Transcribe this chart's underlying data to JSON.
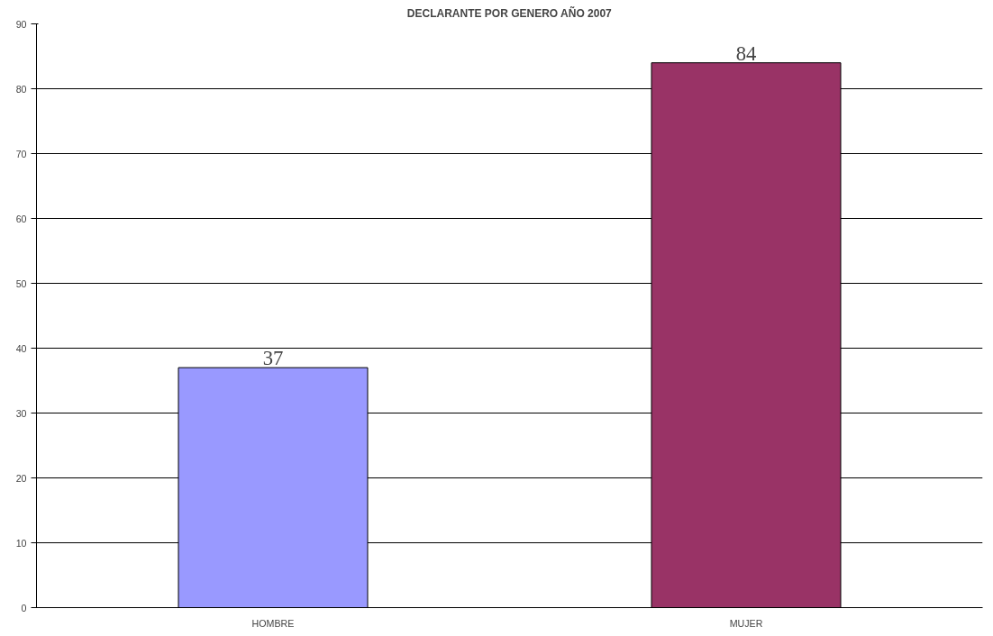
{
  "chart_data": {
    "type": "bar",
    "title": "DECLARANTE POR GENERO AÑO 2007",
    "categories": [
      "HOMBRE",
      "MUJER"
    ],
    "values": [
      37,
      84
    ],
    "colors": [
      "#9999ff",
      "#993366"
    ],
    "ylim": [
      0,
      90
    ],
    "yticks": [
      0,
      10,
      20,
      30,
      40,
      50,
      60,
      70,
      80,
      90
    ],
    "grid": "y",
    "data_labels": true
  }
}
